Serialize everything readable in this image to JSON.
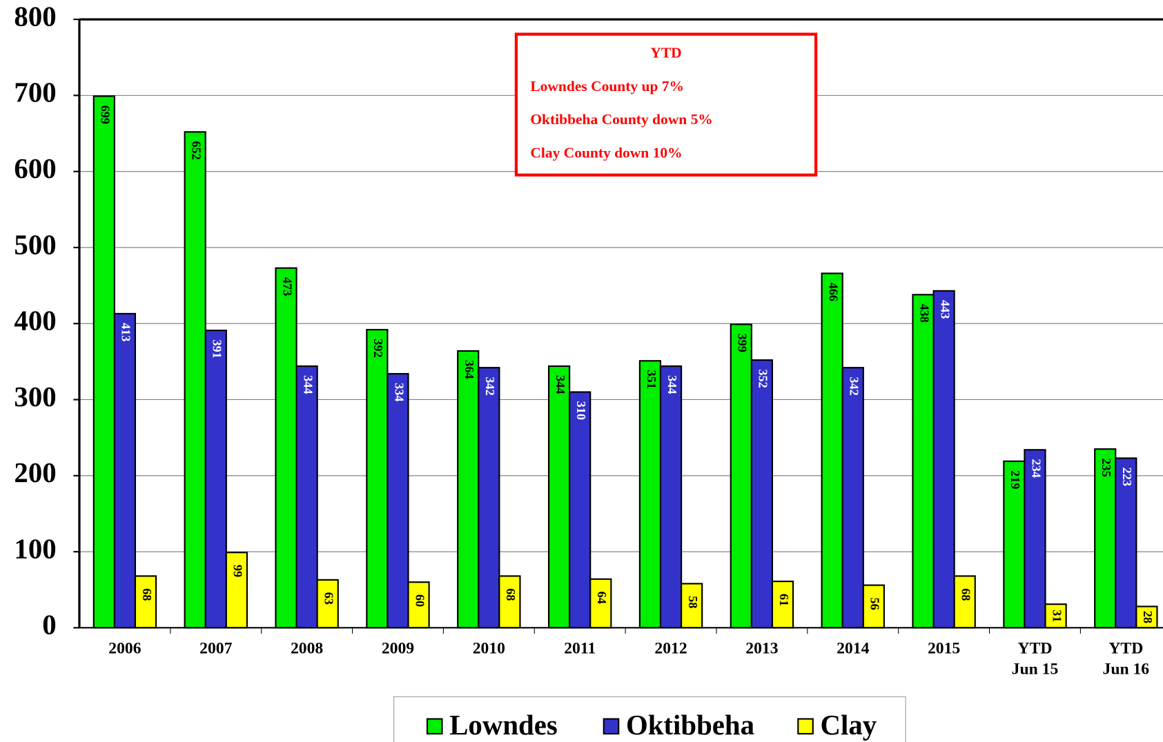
{
  "chart_data": {
    "type": "bar",
    "categories": [
      [
        "2006"
      ],
      [
        "2007"
      ],
      [
        "2008"
      ],
      [
        "2009"
      ],
      [
        "2010"
      ],
      [
        "2011"
      ],
      [
        "2012"
      ],
      [
        "2013"
      ],
      [
        "2014"
      ],
      [
        "2015"
      ],
      [
        "YTD",
        "Jun 15"
      ],
      [
        "YTD",
        "Jun 16"
      ]
    ],
    "series": [
      {
        "name": "Lowndes",
        "color": "#00ee00",
        "label_color": "#000000",
        "values": [
          699,
          652,
          473,
          392,
          364,
          344,
          351,
          399,
          466,
          438,
          219,
          235
        ]
      },
      {
        "name": "Oktibbeha",
        "color": "#3333cc",
        "label_color": "#ffffff",
        "values": [
          413,
          391,
          344,
          334,
          342,
          310,
          344,
          352,
          342,
          443,
          234,
          223
        ]
      },
      {
        "name": "Clay",
        "color": "#ffff00",
        "label_color": "#000000",
        "values": [
          68,
          99,
          63,
          60,
          68,
          64,
          58,
          61,
          56,
          68,
          31,
          28
        ]
      }
    ],
    "ylim": [
      0,
      800
    ],
    "yticks": [
      0,
      100,
      200,
      300,
      400,
      500,
      600,
      700,
      800
    ],
    "grid": true,
    "annotation": {
      "title": "YTD",
      "lines": [
        "Lowndes County up 7%",
        "Oktibbeha County down 5%",
        "Clay County down 10%"
      ],
      "color": "#ff0000"
    },
    "legend": "bottom"
  }
}
